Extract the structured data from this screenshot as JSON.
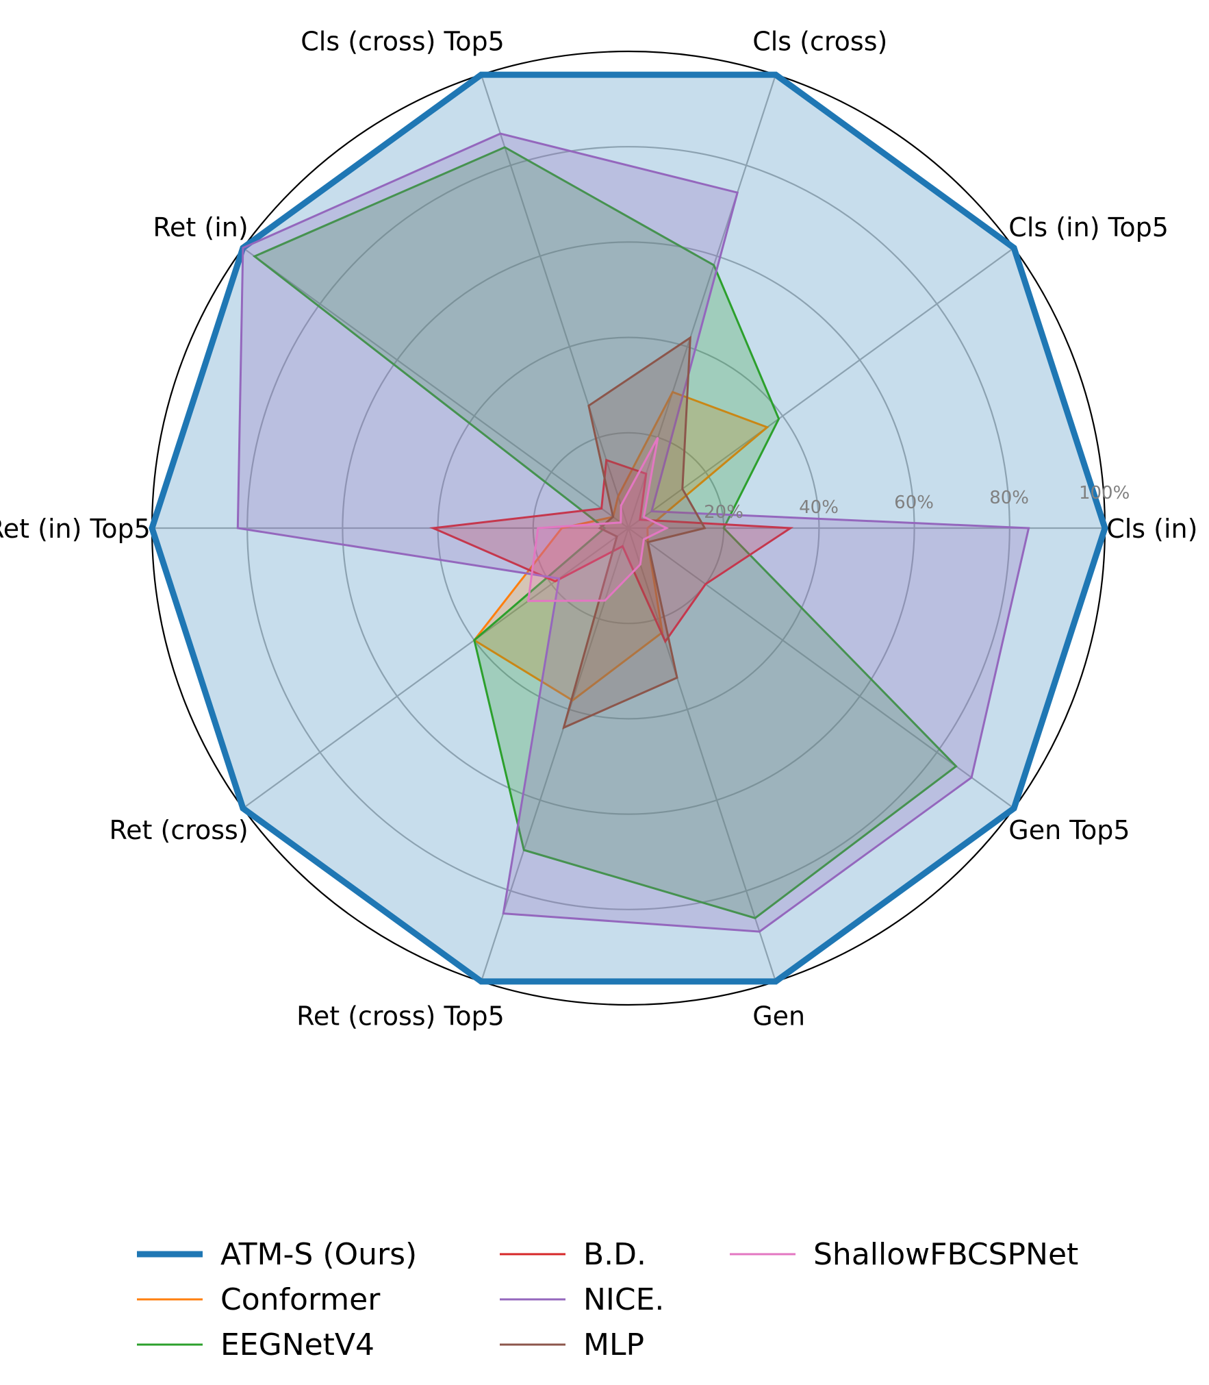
{
  "chart_data": {
    "type": "radar",
    "axes": [
      "Cls (in)",
      "Cls (in) Top5",
      "Cls (cross)",
      "Cls (cross) Top5",
      "Ret (in)",
      "Ret (in) Top5",
      "Ret (cross)",
      "Ret (cross) Top5",
      "Gen",
      "Gen Top5"
    ],
    "rlim": [
      0,
      100
    ],
    "radial_ticks": [
      20,
      40,
      60,
      80,
      100
    ],
    "radial_tick_labels": [
      "20%",
      "40%",
      "60%",
      "80%",
      "100%"
    ],
    "grid": true,
    "legend_position": "bottom",
    "series": [
      {
        "name": "ATM-S (Ours)",
        "color": "#1f77b4",
        "values": [
          100,
          100,
          100,
          100,
          100,
          100,
          100,
          100,
          100,
          100
        ]
      },
      {
        "name": "Conformer",
        "color": "#ff7f0e",
        "values": [
          4,
          36,
          30,
          7,
          4,
          14,
          40,
          38,
          23,
          5
        ]
      },
      {
        "name": "EEGNetV4",
        "color": "#2ca02c",
        "values": [
          20,
          39,
          58,
          84,
          97,
          5,
          40,
          71,
          86,
          85
        ]
      },
      {
        "name": "B.D.",
        "color": "#d62728",
        "values": [
          34,
          3,
          12,
          15,
          7,
          41,
          19,
          4,
          25,
          20
        ]
      },
      {
        "name": "NICE.",
        "color": "#9467bd",
        "values": [
          84,
          6,
          74,
          87,
          100,
          82,
          18,
          85,
          89,
          89
        ]
      },
      {
        "name": "MLP",
        "color": "#8c564b",
        "values": [
          16,
          14,
          42,
          27,
          4,
          6,
          3,
          44,
          33,
          5
        ]
      },
      {
        "name": "ShallowFBCSPNet",
        "color": "#e377c2",
        "values": [
          8,
          4,
          20,
          5,
          2,
          19,
          26,
          16,
          8,
          4
        ]
      }
    ]
  }
}
